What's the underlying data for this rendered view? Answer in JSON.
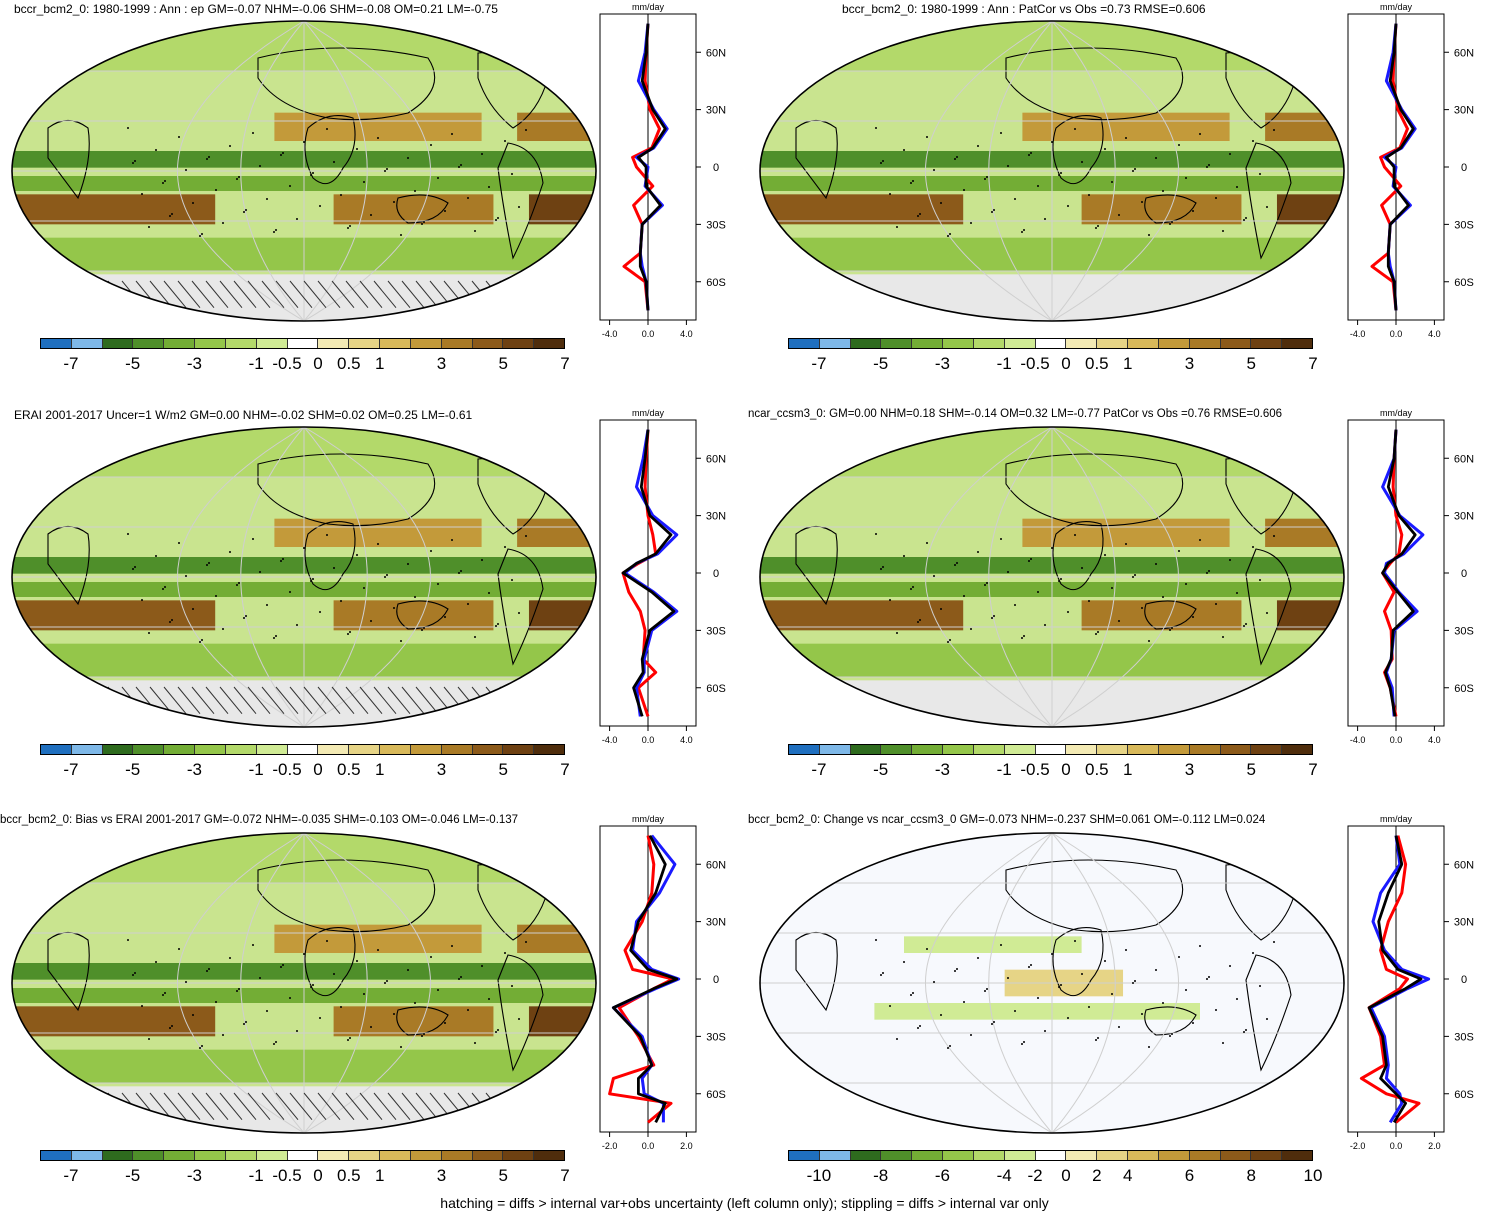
{
  "footer": "hatching = diffs > internal var+obs uncertainty (left column only); stippling = diffs > internal var only",
  "colors": {
    "palette": [
      "#1f6fbf",
      "#7eb8e8",
      "#2e6b1e",
      "#4f8f2a",
      "#73ad35",
      "#94c64a",
      "#b3d96a",
      "#d0eb95",
      "#ffffff",
      "#f3eab4",
      "#e6d486",
      "#d8b95a",
      "#c39a3a",
      "#a97a26",
      "#8c5a1a",
      "#6e4112",
      "#4f2d0c"
    ],
    "model": "#ff0000",
    "obs": "#1a1aff",
    "mean": "#000000"
  },
  "panels": [
    {
      "title": "bccr_bcm2_0: 1980-1999 : Ann : ep GM=-0.07 NHM=-0.06 SHM=-0.08 OM=0.21 LM=-0.75",
      "colorbar_labels": [
        "-7",
        "-5",
        "-3",
        "-1",
        "-0.5",
        "0",
        "0.5",
        "1",
        "3",
        "5",
        "7"
      ],
      "zonal": {
        "unit": "mm/day",
        "xticks": [
          "-4.0",
          "0.0",
          "4.0"
        ],
        "lat_labels": [
          "60N",
          "30N",
          "0",
          "30S",
          "60S"
        ]
      }
    },
    {
      "title": "bccr_bcm2_0: 1980-1999 : Ann : PatCor vs Obs =0.73 RMSE=0.606",
      "colorbar_labels": [
        "-7",
        "-5",
        "-3",
        "-1",
        "-0.5",
        "0",
        "0.5",
        "1",
        "3",
        "5",
        "7"
      ],
      "zonal": {
        "unit": "mm/day",
        "xticks": [
          "-4.0",
          "0.0",
          "4.0"
        ],
        "lat_labels": [
          "60N",
          "30N",
          "0",
          "30S",
          "60S"
        ]
      }
    },
    {
      "title": "ERAI 2001-2017 Uncer=1 W/m2 GM=0.00 NHM=-0.02 SHM=0.02 OM=0.25 LM=-0.61",
      "colorbar_labels": [
        "-7",
        "-5",
        "-3",
        "-1",
        "-0.5",
        "0",
        "0.5",
        "1",
        "3",
        "5",
        "7"
      ],
      "zonal": {
        "unit": "mm/day",
        "xticks": [
          "-4.0",
          "0.0",
          "4.0"
        ],
        "lat_labels": [
          "60N",
          "30N",
          "0",
          "30S",
          "60S"
        ]
      }
    },
    {
      "title": "ncar_ccsm3_0: GM=0.00 NHM=0.18 SHM=-0.14 OM=0.32 LM=-0.77 PatCor vs Obs =0.76 RMSE=0.606",
      "colorbar_labels": [
        "-7",
        "-5",
        "-3",
        "-1",
        "-0.5",
        "0",
        "0.5",
        "1",
        "3",
        "5",
        "7"
      ],
      "zonal": {
        "unit": "mm/day",
        "xticks": [
          "-4.0",
          "0.0",
          "4.0"
        ],
        "lat_labels": [
          "60N",
          "30N",
          "0",
          "30S",
          "60S"
        ]
      }
    },
    {
      "title": "bccr_bcm2_0: Bias vs ERAI 2001-2017 GM=-0.072 NHM=-0.035 SHM=-0.103 OM=-0.046 LM=-0.137",
      "colorbar_labels": [
        "-7",
        "-5",
        "-3",
        "-1",
        "-0.5",
        "0",
        "0.5",
        "1",
        "3",
        "5",
        "7"
      ],
      "zonal": {
        "unit": "mm/day",
        "xticks": [
          "-2.0",
          "0.0",
          "2.0"
        ],
        "lat_labels": [
          "60N",
          "30N",
          "0",
          "30S",
          "60S"
        ]
      }
    },
    {
      "title": "bccr_bcm2_0: Change vs ncar_ccsm3_0 GM=-0.073 NHM=-0.237 SHM=0.061 OM=-0.112 LM=0.024",
      "colorbar_labels": [
        "-10",
        "-8",
        "-6",
        "-4",
        "-2",
        "0",
        "2",
        "4",
        "6",
        "8",
        "10"
      ],
      "zonal": {
        "unit": "mm/day",
        "xticks": [
          "-2.0",
          "0.0",
          "2.0"
        ],
        "lat_labels": [
          "60N",
          "30N",
          "0",
          "30S",
          "60S"
        ]
      }
    }
  ],
  "chart_data": [
    {
      "type": "heatmap",
      "title": "bccr_bcm2_0: 1980-1999 : Ann : ep GM=-0.07 NHM=-0.06 SHM=-0.08 OM=0.21 LM=-0.75",
      "colorbar": [
        "-7",
        "-5",
        "-3",
        "-1",
        "-0.5",
        "0",
        "0.5",
        "1",
        "3",
        "5",
        "7"
      ],
      "zonal_mean": {
        "type": "line",
        "xlabel": "mm/day",
        "xlim": [
          -5,
          5
        ],
        "ylim": [
          -80,
          80
        ],
        "lat": [
          -75,
          -60,
          -52,
          -45,
          -30,
          -20,
          -10,
          0,
          5,
          10,
          20,
          30,
          45,
          60,
          75
        ],
        "series": [
          {
            "name": "model",
            "values": [
              0.0,
              -0.3,
              -2.5,
              -0.8,
              -0.6,
              -1.5,
              0.5,
              -1.2,
              -1.6,
              0.4,
              1.2,
              0.2,
              -0.3,
              -0.2,
              0.0
            ]
          },
          {
            "name": "obs",
            "values": [
              0.0,
              -0.2,
              -0.6,
              -0.8,
              -0.6,
              1.5,
              -0.3,
              0.0,
              -1.2,
              0.6,
              2.0,
              0.6,
              -1.0,
              -0.3,
              0.0
            ]
          },
          {
            "name": "mean",
            "values": [
              0.0,
              -0.2,
              -0.8,
              -0.8,
              -0.6,
              1.3,
              -0.2,
              -0.2,
              -1.0,
              0.5,
              1.8,
              0.5,
              -0.6,
              -0.2,
              0.0
            ]
          }
        ]
      }
    },
    {
      "type": "heatmap",
      "title": "bccr_bcm2_0: 1980-1999 : Ann : PatCor vs Obs =0.73 RMSE=0.606",
      "colorbar": [
        "-7",
        "-5",
        "-3",
        "-1",
        "-0.5",
        "0",
        "0.5",
        "1",
        "3",
        "5",
        "7"
      ],
      "zonal_mean": {
        "type": "line",
        "xlabel": "mm/day",
        "xlim": [
          -5,
          5
        ],
        "ylim": [
          -80,
          80
        ],
        "lat": [
          -75,
          -60,
          -52,
          -45,
          -30,
          -20,
          -10,
          0,
          5,
          10,
          20,
          30,
          45,
          60,
          75
        ],
        "series": [
          {
            "name": "model",
            "values": [
              0.0,
              -0.3,
              -2.5,
              -0.8,
              -0.6,
              -1.5,
              0.5,
              -1.2,
              -1.6,
              0.4,
              1.2,
              0.2,
              -0.3,
              -0.2,
              0.0
            ]
          },
          {
            "name": "obs",
            "values": [
              0.0,
              -0.2,
              -0.6,
              -0.8,
              -0.6,
              1.5,
              -0.3,
              0.0,
              -1.2,
              0.6,
              2.0,
              0.6,
              -1.0,
              -0.3,
              0.0
            ]
          },
          {
            "name": "mean",
            "values": [
              0.0,
              -0.2,
              -0.8,
              -0.8,
              -0.6,
              1.3,
              -0.2,
              -0.2,
              -1.0,
              0.5,
              1.8,
              0.5,
              -0.6,
              -0.2,
              0.0
            ]
          }
        ]
      }
    },
    {
      "type": "heatmap",
      "title": "ERAI 2001-2017 Uncer=1 W/m2 GM=0.00 NHM=-0.02 SHM=0.02 OM=0.25 LM=-0.61",
      "colorbar": [
        "-7",
        "-5",
        "-3",
        "-1",
        "-0.5",
        "0",
        "0.5",
        "1",
        "3",
        "5",
        "7"
      ],
      "zonal_mean": {
        "type": "line",
        "xlabel": "mm/day",
        "xlim": [
          -5,
          5
        ],
        "ylim": [
          -80,
          80
        ],
        "lat": [
          -75,
          -60,
          -52,
          -45,
          -30,
          -20,
          -10,
          0,
          5,
          10,
          20,
          30,
          45,
          60,
          75
        ],
        "series": [
          {
            "name": "model",
            "values": [
              0.0,
              -1.0,
              0.8,
              -0.5,
              -0.3,
              -0.8,
              -2.0,
              -2.6,
              -1.0,
              0.8,
              0.5,
              0.0,
              -0.3,
              -0.2,
              0.0
            ]
          },
          {
            "name": "obs",
            "values": [
              -0.8,
              -1.2,
              -0.4,
              -0.4,
              0.4,
              3.0,
              0.6,
              -2.4,
              -1.2,
              1.0,
              3.0,
              0.5,
              -1.2,
              -0.5,
              0.0
            ]
          },
          {
            "name": "mean",
            "values": [
              -0.6,
              -1.5,
              -0.5,
              -0.6,
              0.2,
              2.7,
              0.4,
              -2.6,
              -1.2,
              0.8,
              2.4,
              0.2,
              -0.7,
              -0.3,
              0.0
            ]
          }
        ]
      }
    },
    {
      "type": "heatmap",
      "title": "ncar_ccsm3_0: GM=0.00 NHM=0.18 SHM=-0.14 OM=0.32 LM=-0.77 PatCor vs Obs =0.76 RMSE=0.606",
      "colorbar": [
        "-7",
        "-5",
        "-3",
        "-1",
        "-0.5",
        "0",
        "0.5",
        "1",
        "3",
        "5",
        "7"
      ],
      "zonal_mean": {
        "type": "line",
        "xlabel": "mm/day",
        "xlim": [
          -5,
          5
        ],
        "ylim": [
          -80,
          80
        ],
        "lat": [
          -75,
          -60,
          -52,
          -45,
          -30,
          -20,
          -10,
          0,
          5,
          10,
          20,
          30,
          45,
          60,
          75
        ],
        "series": [
          {
            "name": "model",
            "values": [
              0.0,
              -0.6,
              -1.2,
              -0.4,
              -0.5,
              -1.2,
              -0.2,
              -1.4,
              -0.6,
              0.3,
              0.6,
              0.0,
              -0.3,
              -0.2,
              0.0
            ]
          },
          {
            "name": "obs",
            "values": [
              -0.2,
              -0.4,
              -1.0,
              -0.5,
              -0.2,
              2.2,
              0.3,
              -1.2,
              -1.0,
              0.8,
              2.8,
              0.4,
              -1.4,
              -0.2,
              0.0
            ]
          },
          {
            "name": "mean",
            "values": [
              -0.1,
              -0.6,
              -1.1,
              -0.5,
              -0.3,
              1.8,
              0.2,
              -1.4,
              -0.8,
              0.6,
              2.0,
              0.3,
              -0.8,
              -0.2,
              0.0
            ]
          }
        ]
      }
    },
    {
      "type": "heatmap",
      "title": "bccr_bcm2_0: Bias vs ERAI 2001-2017 GM=-0.072 NHM=-0.035 SHM=-0.103 OM=-0.046 LM=-0.137",
      "colorbar": [
        "-7",
        "-5",
        "-3",
        "-1",
        "-0.5",
        "0",
        "0.5",
        "1",
        "3",
        "5",
        "7"
      ],
      "zonal_mean": {
        "type": "line",
        "xlabel": "mm/day",
        "xlim": [
          -2.5,
          2.5
        ],
        "ylim": [
          -80,
          80
        ],
        "lat": [
          -75,
          -65,
          -60,
          -52,
          -45,
          -30,
          -15,
          -5,
          0,
          5,
          15,
          30,
          45,
          60,
          75
        ],
        "series": [
          {
            "name": "model",
            "values": [
              0.0,
              1.2,
              -2.0,
              -1.8,
              0.3,
              -0.5,
              -1.5,
              0.3,
              1.3,
              -0.8,
              -1.2,
              -0.3,
              0.2,
              0.3,
              0.0
            ]
          },
          {
            "name": "obs",
            "values": [
              0.8,
              0.8,
              -0.2,
              -0.3,
              0.2,
              -0.3,
              -1.8,
              0.4,
              1.6,
              0.2,
              -0.8,
              -0.6,
              0.6,
              1.4,
              0.2
            ]
          },
          {
            "name": "mean",
            "values": [
              0.4,
              0.9,
              -0.5,
              -0.5,
              0.2,
              -0.4,
              -1.8,
              0.3,
              1.5,
              0.0,
              -0.9,
              -0.5,
              0.4,
              0.9,
              0.1
            ]
          }
        ]
      }
    },
    {
      "type": "heatmap",
      "title": "bccr_bcm2_0: Change vs ncar_ccsm3_0 GM=-0.073 NHM=-0.237 SHM=0.061 OM=-0.112 LM=0.024",
      "colorbar": [
        "-10",
        "-8",
        "-6",
        "-4",
        "-2",
        "0",
        "2",
        "4",
        "6",
        "8",
        "10"
      ],
      "zonal_mean": {
        "type": "line",
        "xlabel": "mm/day",
        "xlim": [
          -2.5,
          2.5
        ],
        "ylim": [
          -80,
          80
        ],
        "lat": [
          -75,
          -65,
          -60,
          -52,
          -45,
          -30,
          -15,
          -5,
          0,
          5,
          15,
          30,
          45,
          60,
          75
        ],
        "series": [
          {
            "name": "model",
            "values": [
              0.0,
              1.2,
              -0.5,
              -1.8,
              -0.6,
              -0.8,
              -1.4,
              0.2,
              0.6,
              -0.5,
              -0.8,
              -0.4,
              0.3,
              0.5,
              0.1
            ]
          },
          {
            "name": "obs",
            "values": [
              -0.3,
              0.3,
              0.2,
              -0.5,
              -0.4,
              -0.6,
              -1.3,
              0.6,
              1.7,
              0.3,
              -0.6,
              -1.2,
              -0.8,
              0.2,
              0.0
            ]
          },
          {
            "name": "mean",
            "values": [
              -0.1,
              0.5,
              0.0,
              -0.8,
              -0.5,
              -0.7,
              -1.4,
              0.5,
              1.3,
              0.1,
              -0.7,
              -0.9,
              -0.4,
              0.3,
              0.0
            ]
          }
        ]
      }
    }
  ]
}
